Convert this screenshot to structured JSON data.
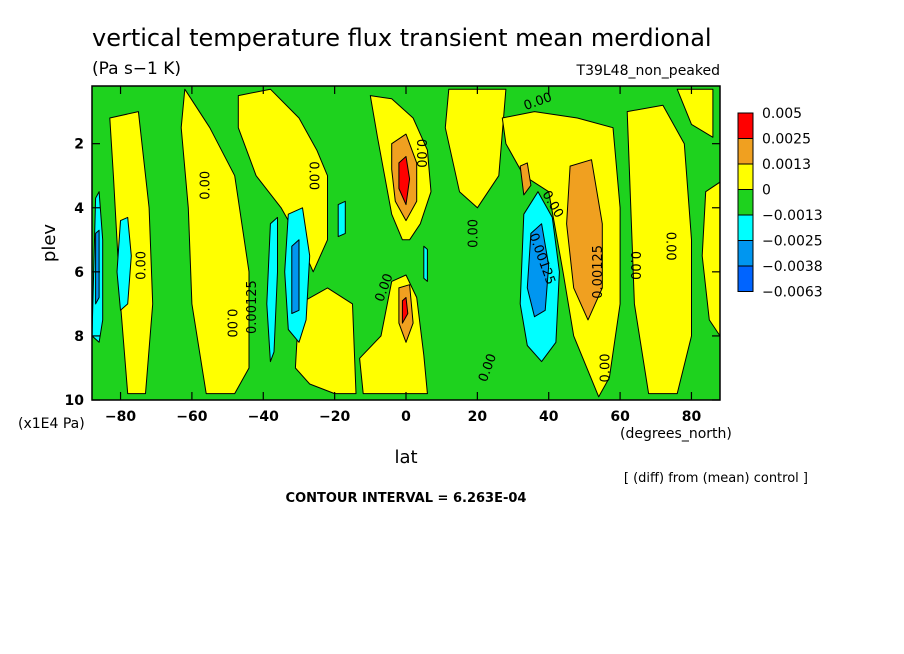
{
  "colors": {
    "red": "#ff0000",
    "orange": "#f0a020",
    "yellow": "#ffff00",
    "green": "#1ed21e",
    "cyan": "#00ffff",
    "mid_blue": "#0096f0",
    "blue": "#0064ff"
  },
  "chart_data": {
    "type": "contour",
    "title": "vertical temperature flux transient mean merdional",
    "units": "(Pa s−1 K)",
    "experiment": "T39L48_non_peaked",
    "xlabel": "lat",
    "x_units": "(degrees_north)",
    "ylabel": "plev",
    "y_units": "(x1E4 Pa)",
    "xlim": [
      -88,
      88
    ],
    "ylim": [
      10,
      0.2
    ],
    "x_ticks": [
      -80,
      -60,
      -40,
      -20,
      0,
      20,
      40,
      60,
      80
    ],
    "y_ticks": [
      2,
      4,
      6,
      8,
      10
    ],
    "x_tick_labels": [
      "−80",
      "−60",
      "−40",
      "−20",
      "0",
      "20",
      "40",
      "60",
      "80"
    ],
    "y_tick_labels": [
      "2",
      "4",
      "6",
      "8",
      "10"
    ],
    "legend": {
      "levels": [
        "0.005",
        "0.0025",
        "0.0013",
        "0",
        "−0.0013",
        "−0.0025",
        "−0.0038",
        "−0.0063"
      ],
      "colors": [
        "#ff0000",
        "#f0a020",
        "#ffff00",
        "#1ed21e",
        "#00ffff",
        "#0096f0",
        "#0064ff"
      ]
    },
    "background_field": "#1ed21e",
    "regions": [
      {
        "color": "yellow",
        "pts": [
          [
            -83,
            1.2
          ],
          [
            -75,
            1.0
          ],
          [
            -72,
            4
          ],
          [
            -71,
            7
          ],
          [
            -73,
            9.8
          ],
          [
            -78,
            9.8
          ],
          [
            -80,
            7
          ],
          [
            -82,
            3
          ]
        ]
      },
      {
        "color": "yellow",
        "pts": [
          [
            -62,
            0.3
          ],
          [
            -55,
            1.5
          ],
          [
            -48,
            3
          ],
          [
            -44,
            6
          ],
          [
            -44,
            9
          ],
          [
            -48,
            9.8
          ],
          [
            -56,
            9.8
          ],
          [
            -60,
            7
          ],
          [
            -61,
            4
          ],
          [
            -63,
            1.5
          ]
        ]
      },
      {
        "color": "yellow",
        "pts": [
          [
            -47,
            0.5
          ],
          [
            -38,
            0.3
          ],
          [
            -30,
            1.2
          ],
          [
            -25,
            2.2
          ],
          [
            -22,
            3
          ],
          [
            -22,
            5
          ],
          [
            -26,
            6
          ],
          [
            -30,
            5
          ],
          [
            -35,
            4
          ],
          [
            -42,
            3
          ],
          [
            -47,
            1.5
          ]
        ]
      },
      {
        "color": "yellow",
        "pts": [
          [
            -30,
            7
          ],
          [
            -22,
            6.5
          ],
          [
            -15,
            7
          ],
          [
            -14,
            9.8
          ],
          [
            -20,
            9.8
          ],
          [
            -27,
            9.5
          ],
          [
            -31,
            9
          ]
        ]
      },
      {
        "color": "yellow",
        "pts": [
          [
            -10,
            0.5
          ],
          [
            -4,
            0.6
          ],
          [
            2,
            1.2
          ],
          [
            6,
            2.2
          ],
          [
            7,
            3.5
          ],
          [
            4,
            4.5
          ],
          [
            1,
            5
          ],
          [
            -1,
            5
          ],
          [
            -4,
            4.2
          ],
          [
            -6,
            3
          ],
          [
            -8,
            1.8
          ]
        ]
      },
      {
        "color": "yellow",
        "pts": [
          [
            -13,
            8.7
          ],
          [
            -7,
            8
          ],
          [
            -4,
            6.3
          ],
          [
            0,
            6.1
          ],
          [
            3,
            6.8
          ],
          [
            5,
            8.6
          ],
          [
            6,
            9.8
          ],
          [
            -12,
            9.8
          ]
        ]
      },
      {
        "color": "yellow",
        "pts": [
          [
            12,
            0.3
          ],
          [
            28,
            0.3
          ],
          [
            26,
            3
          ],
          [
            20,
            4
          ],
          [
            15,
            3.5
          ],
          [
            11,
            1.5
          ]
        ]
      },
      {
        "color": "yellow",
        "pts": [
          [
            27,
            1.2
          ],
          [
            36,
            1.0
          ],
          [
            48,
            1.2
          ],
          [
            58,
            1.5
          ],
          [
            60,
            4
          ],
          [
            60,
            7
          ],
          [
            57,
            9.3
          ],
          [
            54,
            9.9
          ],
          [
            47,
            8
          ],
          [
            44,
            6
          ],
          [
            40,
            3.5
          ],
          [
            33,
            3
          ],
          [
            28,
            2
          ]
        ]
      },
      {
        "color": "yellow",
        "pts": [
          [
            62,
            1.0
          ],
          [
            72,
            0.8
          ],
          [
            78,
            2
          ],
          [
            80,
            5
          ],
          [
            80,
            8
          ],
          [
            76,
            9.8
          ],
          [
            68,
            9.8
          ],
          [
            64,
            7
          ],
          [
            63,
            4
          ]
        ]
      },
      {
        "color": "yellow",
        "pts": [
          [
            76,
            0.3
          ],
          [
            86,
            0.3
          ],
          [
            86,
            1.8
          ],
          [
            80,
            1.4
          ]
        ]
      },
      {
        "color": "yellow",
        "pts": [
          [
            84,
            3.5
          ],
          [
            88,
            3.2
          ],
          [
            88,
            8
          ],
          [
            85,
            7.5
          ],
          [
            83,
            5.5
          ]
        ]
      },
      {
        "color": "orange",
        "pts": [
          [
            -4,
            2.0
          ],
          [
            0,
            1.7
          ],
          [
            3,
            2.6
          ],
          [
            3,
            3.8
          ],
          [
            0,
            4.4
          ],
          [
            -3,
            3.8
          ],
          [
            -4,
            2.8
          ]
        ]
      },
      {
        "color": "orange",
        "pts": [
          [
            -2,
            6.5
          ],
          [
            1,
            6.4
          ],
          [
            2,
            7.6
          ],
          [
            0,
            8.2
          ],
          [
            -2,
            7.6
          ]
        ]
      },
      {
        "color": "orange",
        "pts": [
          [
            46,
            2.7
          ],
          [
            52,
            2.5
          ],
          [
            55,
            4.5
          ],
          [
            55,
            6.5
          ],
          [
            51,
            7.5
          ],
          [
            47,
            6.5
          ],
          [
            45,
            4.5
          ]
        ]
      },
      {
        "color": "orange",
        "pts": [
          [
            32,
            2.7
          ],
          [
            34,
            2.6
          ],
          [
            35,
            3.3
          ],
          [
            33,
            3.6
          ]
        ]
      },
      {
        "color": "red",
        "pts": [
          [
            -2,
            2.6
          ],
          [
            0,
            2.4
          ],
          [
            1,
            3.1
          ],
          [
            0,
            3.9
          ],
          [
            -2,
            3.4
          ]
        ]
      },
      {
        "color": "red",
        "pts": [
          [
            -1,
            6.9
          ],
          [
            0,
            6.8
          ],
          [
            0.5,
            7.3
          ],
          [
            -1,
            7.6
          ]
        ]
      },
      {
        "color": "cyan",
        "pts": [
          [
            -87,
            3.7
          ],
          [
            -86,
            3.5
          ],
          [
            -85,
            5
          ],
          [
            -85,
            7.5
          ],
          [
            -86,
            8.2
          ],
          [
            -88,
            8
          ]
        ]
      },
      {
        "color": "cyan",
        "pts": [
          [
            -80,
            4.4
          ],
          [
            -78,
            4.3
          ],
          [
            -77,
            5.5
          ],
          [
            -78,
            7
          ],
          [
            -80,
            7.2
          ],
          [
            -81,
            6
          ]
        ]
      },
      {
        "color": "cyan",
        "pts": [
          [
            -38,
            4.5
          ],
          [
            -36,
            4.3
          ],
          [
            -36,
            6
          ],
          [
            -37,
            8.5
          ],
          [
            -38,
            8.8
          ],
          [
            -39,
            7
          ]
        ]
      },
      {
        "color": "cyan",
        "pts": [
          [
            -33,
            4.2
          ],
          [
            -29,
            4.0
          ],
          [
            -27,
            5.5
          ],
          [
            -28,
            7.5
          ],
          [
            -30,
            8.2
          ],
          [
            -33,
            7.8
          ],
          [
            -34,
            6
          ]
        ]
      },
      {
        "color": "cyan",
        "pts": [
          [
            -19,
            3.9
          ],
          [
            -17,
            3.8
          ],
          [
            -17,
            4.8
          ],
          [
            -19,
            4.9
          ]
        ]
      },
      {
        "color": "cyan",
        "pts": [
          [
            5,
            5.2
          ],
          [
            6,
            5.3
          ],
          [
            6,
            6.3
          ],
          [
            5,
            6.2
          ]
        ]
      },
      {
        "color": "cyan",
        "pts": [
          [
            33,
            4.2
          ],
          [
            37,
            3.5
          ],
          [
            41,
            4.3
          ],
          [
            43,
            6
          ],
          [
            42,
            8.2
          ],
          [
            38,
            8.8
          ],
          [
            34,
            8.3
          ],
          [
            32,
            7
          ]
        ]
      },
      {
        "color": "mid_blue",
        "pts": [
          [
            -87,
            4.8
          ],
          [
            -86,
            4.7
          ],
          [
            -86,
            6.8
          ],
          [
            -87,
            7
          ]
        ]
      },
      {
        "color": "mid_blue",
        "pts": [
          [
            -32,
            5.2
          ],
          [
            -30,
            5.0
          ],
          [
            -30,
            7.2
          ],
          [
            -32,
            7.3
          ]
        ]
      },
      {
        "color": "mid_blue",
        "pts": [
          [
            35,
            4.8
          ],
          [
            38,
            4.5
          ],
          [
            40,
            5.8
          ],
          [
            39,
            7.2
          ],
          [
            36,
            7.4
          ],
          [
            34,
            6.5
          ]
        ]
      }
    ],
    "contour_labels": [
      {
        "text": "0.00",
        "lat": 37,
        "plev": 0.7,
        "rotate": -20
      },
      {
        "text": "0.00",
        "lat": 4,
        "plev": 2.3,
        "rotate": 90
      },
      {
        "text": "0.00",
        "lat": -26,
        "plev": 3.0,
        "rotate": 90
      },
      {
        "text": "0.00",
        "lat": -56,
        "plev": 3.3,
        "rotate": -90
      },
      {
        "text": "0.00",
        "lat": 41,
        "plev": 3.9,
        "rotate": 60
      },
      {
        "text": "0.00",
        "lat": 19,
        "plev": 4.8,
        "rotate": -90
      },
      {
        "text": "0.00",
        "lat": 74,
        "plev": 5.2,
        "rotate": 90
      },
      {
        "text": "0.00125",
        "lat": 38,
        "plev": 5.6,
        "rotate": 70
      },
      {
        "text": "0.00125",
        "lat": 54,
        "plev": 6.0,
        "rotate": -90
      },
      {
        "text": "0.00",
        "lat": -74,
        "plev": 5.8,
        "rotate": -90
      },
      {
        "text": "0.00",
        "lat": 64,
        "plev": 5.8,
        "rotate": 90
      },
      {
        "text": "0.00",
        "lat": -6,
        "plev": 6.5,
        "rotate": -70
      },
      {
        "text": "0.00125",
        "lat": -43,
        "plev": 7.1,
        "rotate": -90
      },
      {
        "text": "0.00",
        "lat": -49,
        "plev": 7.6,
        "rotate": 90
      },
      {
        "text": "0.00",
        "lat": 23,
        "plev": 9.0,
        "rotate": -70
      },
      {
        "text": "0.00",
        "lat": 56,
        "plev": 9.0,
        "rotate": -90
      }
    ]
  },
  "annotations": {
    "diff_note": "[ (diff) from (mean) control ]",
    "contour_interval": "CONTOUR INTERVAL = 6.263E-04"
  }
}
